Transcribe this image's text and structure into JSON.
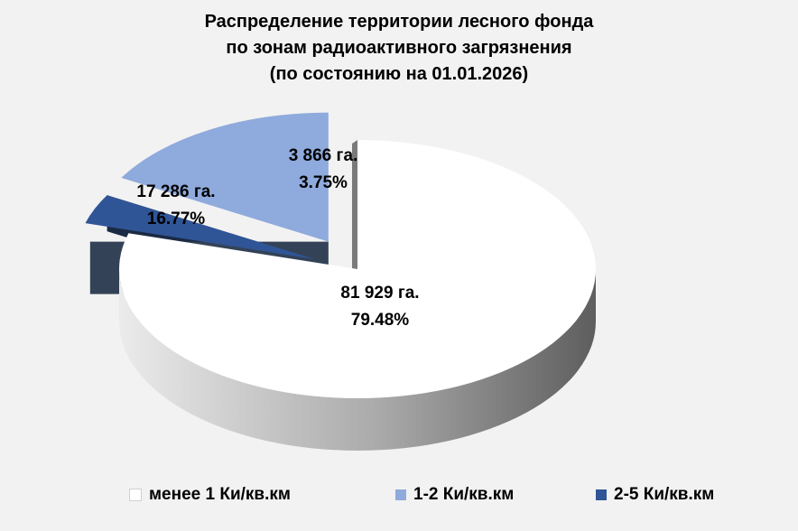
{
  "chart_data": {
    "type": "pie",
    "title": [
      "Распределение территории лесного фонда",
      "по зонам радиоактивного загрязнения",
      "(по состоянию на 01.01.2026)"
    ],
    "slices": [
      {
        "name": "менее 1 Ки/кв.км",
        "value": 81929,
        "value_label": "81 929 га.",
        "percent_label": "79.48%",
        "color": "#ffffff"
      },
      {
        "name": "1-2 Ки/кв.км",
        "value": 17286,
        "value_label": "17 286 га.",
        "percent_label": "16.77%",
        "color": "#8faadc"
      },
      {
        "name": "2-5 Ки/кв.км",
        "value": 3866,
        "value_label": "3 866 га.",
        "percent_label": "3.75%",
        "color": "#2f5597"
      }
    ],
    "style": "3d-exploded",
    "legend": "bottom"
  }
}
